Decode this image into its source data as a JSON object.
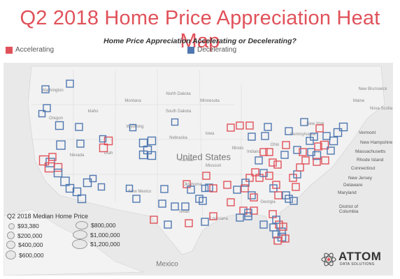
{
  "title": "Q2 2018 Home Price Appreciation Heat Map",
  "subtitle": "Home Price Appreciation Accelerating or Decelerating?",
  "legend": [
    {
      "label": "Accelerating",
      "color": "#e0525a"
    },
    {
      "label": "Decelerating",
      "color": "#4f77b0"
    }
  ],
  "colors": {
    "accelerating": "#e0525a",
    "decelerating": "#4f77b0",
    "map_bg": "#eeeeee"
  },
  "map_labels": {
    "countries": [
      "United States",
      "Mexico"
    ],
    "states": [
      "Washington",
      "Oregon",
      "Idaho",
      "Montana",
      "North Dakota",
      "Minnesota",
      "South Dakota",
      "Wyoming",
      "Nevada",
      "Utah",
      "Nebraska",
      "Iowa",
      "Kansas",
      "Illinois",
      "Indiana",
      "Ohio",
      "Missouri",
      "Oklahoma",
      "New Mexico",
      "Texas",
      "Louisiana",
      "Georgia",
      "Pennsylvania",
      "New York",
      "Maine",
      "New Brunswick",
      "Nova Scotia"
    ],
    "east_coast": [
      "Vermont",
      "New Hampshire",
      "Massachusetts",
      "Rhode Island",
      "Connecticut",
      "New Jersey",
      "Delaware",
      "Maryland",
      "District of Columbia"
    ]
  },
  "price_legend": {
    "title": "Q2 2018 Median Home Price",
    "items": [
      "$93,380",
      "$800,000",
      "$200,000",
      "$1,000,000",
      "$400,000",
      "$1,200,000",
      "$600,000"
    ]
  },
  "logo": {
    "name": "ATTOM",
    "tagline": "DATA SOLUTIONS"
  },
  "markers": [
    {
      "t": "d"
    },
    {
      "t": "d"
    },
    {
      "t": "d"
    },
    {
      "t": "d"
    },
    {
      "t": "d"
    },
    {
      "t": "d"
    },
    {
      "t": "d"
    },
    {
      "t": "d"
    },
    {
      "t": "d"
    },
    {
      "t": "a"
    },
    {
      "t": "a"
    },
    {
      "t": "a"
    },
    {
      "t": "a"
    },
    {
      "t": "d"
    },
    {
      "t": "d"
    },
    {
      "t": "d"
    },
    {
      "t": "d"
    },
    {
      "t": "a"
    },
    {
      "t": "a"
    },
    {
      "t": "d"
    },
    {
      "t": "d"
    },
    {
      "t": "d"
    },
    {
      "t": "d"
    },
    {
      "t": "d"
    },
    {
      "t": "d"
    },
    {
      "t": "d"
    },
    {
      "t": "d"
    },
    {
      "t": "d"
    },
    {
      "t": "d"
    },
    {
      "t": "d"
    },
    {
      "t": "d"
    },
    {
      "t": "d"
    },
    {
      "t": "d"
    },
    {
      "t": "d"
    },
    {
      "t": "d"
    },
    {
      "t": "d"
    },
    {
      "t": "d"
    },
    {
      "t": "a"
    },
    {
      "t": "d"
    },
    {
      "t": "d"
    },
    {
      "t": "d"
    },
    {
      "t": "a"
    },
    {
      "t": "d"
    },
    {
      "t": "a"
    },
    {
      "t": "d"
    },
    {
      "t": "a"
    },
    {
      "t": "a"
    },
    {
      "t": "a"
    },
    {
      "t": "d"
    },
    {
      "t": "d"
    },
    {
      "t": "d"
    },
    {
      "t": "a"
    },
    {
      "t": "a"
    },
    {
      "t": "a"
    },
    {
      "t": "d"
    },
    {
      "t": "a"
    },
    {
      "t": "a"
    },
    {
      "t": "d"
    },
    {
      "t": "a"
    },
    {
      "t": "a"
    },
    {
      "t": "d"
    },
    {
      "t": "a"
    },
    {
      "t": "d"
    },
    {
      "t": "a"
    },
    {
      "t": "a"
    },
    {
      "t": "d"
    },
    {
      "t": "a"
    },
    {
      "t": "a"
    },
    {
      "t": "d"
    },
    {
      "t": "a"
    },
    {
      "t": "d"
    },
    {
      "t": "d"
    },
    {
      "t": "a"
    },
    {
      "t": "d"
    },
    {
      "t": "a"
    },
    {
      "t": "a"
    },
    {
      "t": "d"
    },
    {
      "t": "d"
    },
    {
      "t": "a"
    },
    {
      "t": "a"
    },
    {
      "t": "d"
    },
    {
      "t": "d"
    },
    {
      "t": "d"
    },
    {
      "t": "d"
    },
    {
      "t": "d"
    },
    {
      "t": "d"
    },
    {
      "t": "a"
    },
    {
      "t": "d"
    },
    {
      "t": "a"
    },
    {
      "t": "d"
    },
    {
      "t": "a"
    },
    {
      "t": "d"
    },
    {
      "t": "a"
    },
    {
      "t": "d"
    },
    {
      "t": "d"
    },
    {
      "t": "a"
    },
    {
      "t": "a"
    },
    {
      "t": "a"
    },
    {
      "t": "d"
    },
    {
      "t": "a"
    },
    {
      "t": "d"
    },
    {
      "t": "a"
    },
    {
      "t": "d"
    },
    {
      "t": "a"
    },
    {
      "t": "a"
    },
    {
      "t": "d"
    },
    {
      "t": "a"
    },
    {
      "t": "d"
    },
    {
      "t": "a"
    },
    {
      "t": "a"
    },
    {
      "t": "d"
    },
    {
      "t": "d"
    },
    {
      "t": "d"
    },
    {
      "t": "a"
    },
    {
      "t": "d"
    },
    {
      "t": "d"
    },
    {
      "t": "a"
    },
    {
      "t": "a"
    },
    {
      "t": "d"
    },
    {
      "t": "d"
    }
  ]
}
